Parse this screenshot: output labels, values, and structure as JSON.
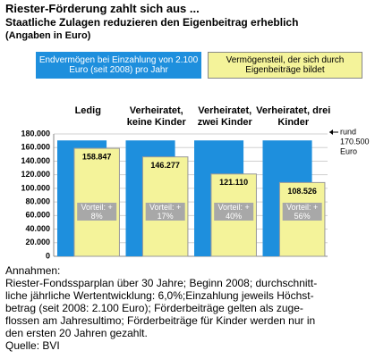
{
  "chart_data": {
    "type": "bar",
    "title": "Riester-Förderung zahlt sich aus ...",
    "subtitle": "Staatliche Zulagen reduzieren den Eigenbeitrag erheblich",
    "unit_note": "(Angaben in Euro)",
    "categories": [
      "Ledig",
      "Verheiratet, keine Kinder",
      "Verheiratet, zwei Kinder",
      "Verheiratet, drei Kinder"
    ],
    "series": [
      {
        "name": "Endvermögen bei Einzahlung von 2.100 Euro (seit 2008) pro Jahr",
        "color": "#1e8fdd",
        "values": [
          170500,
          170500,
          170500,
          170500
        ]
      },
      {
        "name": "Vermögensteil, der sich durch Eigenbeiträge bildet",
        "color": "#f4f39a",
        "values": [
          158847,
          146277,
          121110,
          108526
        ],
        "value_labels": [
          "158.847",
          "146.277",
          "121.110",
          "108.526"
        ]
      }
    ],
    "advantages": [
      "Vorteil: + 8%",
      "Vorteil: + 17%",
      "Vorteil: + 40%",
      "Vorteil: + 56%"
    ],
    "annotation": [
      "rund",
      "170.500",
      "Euro"
    ],
    "ylim": [
      0,
      180000
    ],
    "yticks": [
      {
        "value": 0,
        "label": "0"
      },
      {
        "value": 20000,
        "label": "20.000"
      },
      {
        "value": 40000,
        "label": "40.000"
      },
      {
        "value": 60000,
        "label": "60.000"
      },
      {
        "value": 80000,
        "label": "80.000"
      },
      {
        "value": 100000,
        "label": "100.000"
      },
      {
        "value": 120000,
        "label": "120.000"
      },
      {
        "value": 140000,
        "label": "140.000"
      },
      {
        "value": 160000,
        "label": "160.000"
      },
      {
        "value": 180000,
        "label": "180.000"
      }
    ],
    "grid": true,
    "notes_title": "Annahmen:",
    "notes": [
      "Riester-Fondssparplan über 30 Jahre; Beginn 2008; durchschnitt-",
      "liche jährliche Wertentwicklung: 6,0%;Einzahlung jeweils Höchst-",
      "betrag (seit 2008: 2.100 Euro); Förderbeiträge gelten als zuge-",
      "flossen am Jahresultimo; Förderbeiträge für Kinder werden nur in",
      "den ersten 20 Jahren gezahlt."
    ],
    "source": "Quelle: BVI"
  }
}
